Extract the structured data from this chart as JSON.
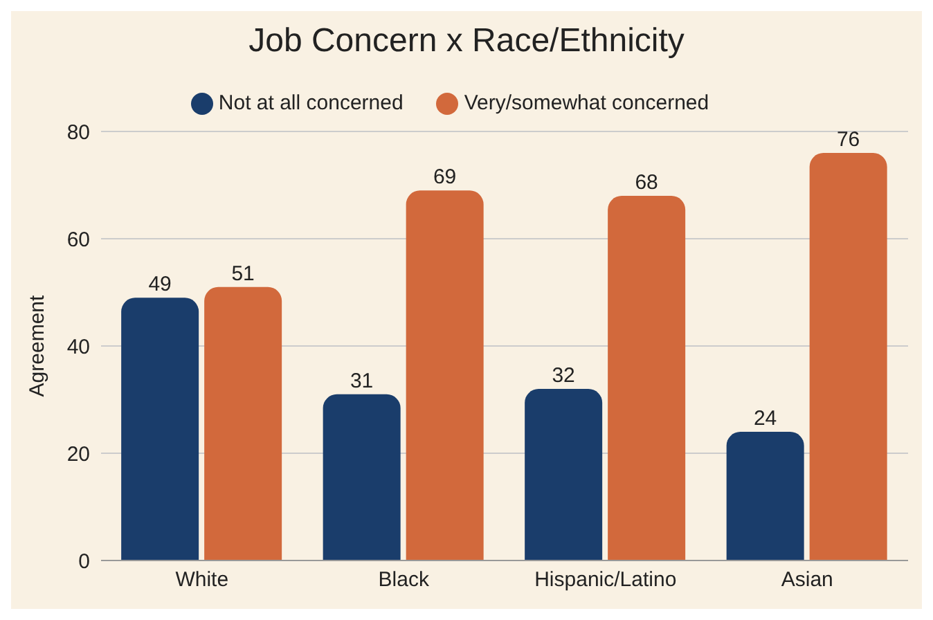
{
  "chart_data": {
    "type": "bar",
    "title": "Job Concern x Race/Ethnicity",
    "ylabel": "Agreement",
    "categories": [
      "White",
      "Black",
      "Hispanic/Latino",
      "Asian"
    ],
    "series": [
      {
        "name": "Not at all concerned",
        "color": "#1a3d6b",
        "values": [
          49,
          31,
          32,
          24
        ]
      },
      {
        "name": "Very/somewhat concerned",
        "color": "#d2693c",
        "values": [
          51,
          69,
          68,
          76
        ]
      }
    ],
    "ylim": [
      0,
      80
    ],
    "yticks": [
      0,
      20,
      40,
      60,
      80
    ],
    "grid": "y",
    "legend": "top",
    "data_labels": true
  }
}
